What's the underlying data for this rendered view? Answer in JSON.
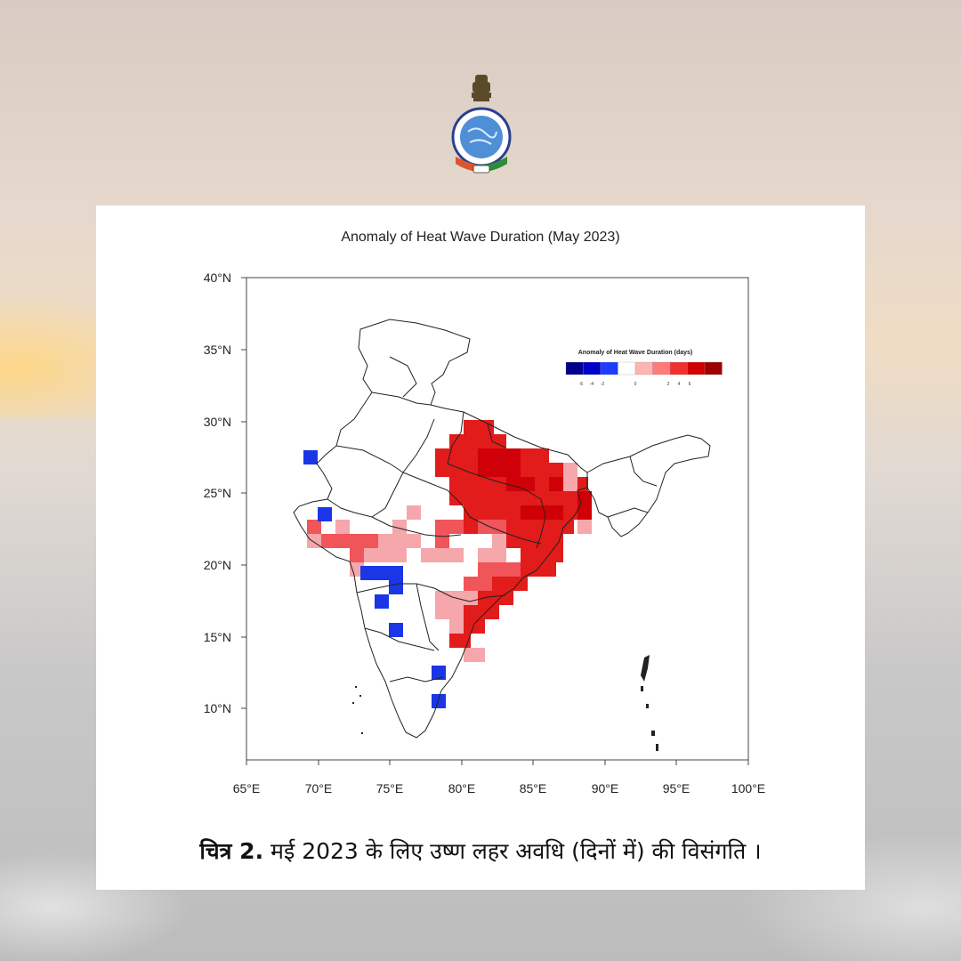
{
  "map": {
    "title": "Anomaly of Heat Wave Duration (May 2023)",
    "lat_ticks": [
      "40°N",
      "35°N",
      "30°N",
      "25°N",
      "20°N",
      "15°N",
      "10°N"
    ],
    "lon_ticks": [
      "65°E",
      "70°E",
      "75°E",
      "80°E",
      "85°E",
      "90°E",
      "95°E",
      "100°E"
    ],
    "lat_range": [
      6.5,
      40
    ],
    "lon_range": [
      65,
      100
    ],
    "legend": {
      "title": "Anomaly of Heat Wave Duration (days)",
      "tick_labels": [
        "-6",
        "-4",
        "-2",
        "0",
        "2",
        "4",
        "6"
      ],
      "colors": [
        "#00008b",
        "#0000c8",
        "#1e3cff",
        "#ffffff",
        "#ffb3b3",
        "#ff7a7a",
        "#f03030",
        "#d10000",
        "#a00000"
      ]
    },
    "colors": {
      "positive_light": "#f5a7ab",
      "positive_mid": "#f0555a",
      "positive_strong": "#e21b1b",
      "positive_deep": "#cf0008",
      "negative": "#1a36e6"
    }
  },
  "caption": {
    "bold": "चित्र 2.",
    "text": " मई 2023 के लिए उष्ण लहर अवधि (दिनों में) की विसंगति ।"
  }
}
